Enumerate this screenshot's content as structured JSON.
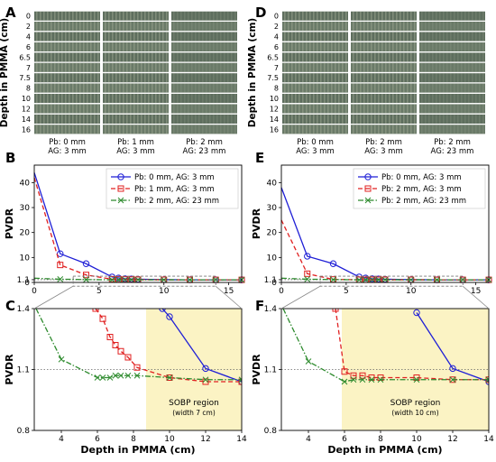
{
  "panel_letters": [
    "A",
    "B",
    "C",
    "D",
    "E",
    "F"
  ],
  "film_depth_labels": [
    "0",
    "2",
    "4",
    "6",
    "6.5",
    "7",
    "7.5",
    "8",
    "10",
    "12",
    "14",
    "16"
  ],
  "film_ylabel": "Depth in PMMA (cm)",
  "film_left": [
    {
      "line1": "Pb: 0 mm",
      "line2": "AG: 3 mm"
    },
    {
      "line1": "Pb: 1 mm",
      "line2": "AG: 3 mm"
    },
    {
      "line1": "Pb: 2 mm",
      "line2": "AG: 23 mm"
    }
  ],
  "film_right": [
    {
      "line1": "Pb: 0 mm",
      "line2": "AG: 3 mm"
    },
    {
      "line1": "Pb: 2 mm",
      "line2": "AG: 3 mm"
    },
    {
      "line1": "Pb: 2 mm",
      "line2": "AG: 23 mm"
    }
  ],
  "colors": {
    "blue": "#1f1fd6",
    "red": "#e02020",
    "green": "#2e8b2e",
    "sobp": "#fbf3c4",
    "film_dark": "#5e6e5e",
    "film_light": "#9aa590"
  },
  "chart_data": [
    {
      "panel": "B",
      "type": "line",
      "ylabel": "PVDR",
      "xlim": [
        0,
        16
      ],
      "ylim": [
        0,
        47
      ],
      "yticks": [
        "0",
        "1.1",
        "10",
        "20",
        "30",
        "40"
      ],
      "xticks": [
        "0",
        "5",
        "10",
        "15"
      ],
      "legend_position": "top-right",
      "series": [
        {
          "name": "Pb: 0 mm, AG: 3 mm",
          "color": "blue",
          "marker": "circle",
          "dash": "solid",
          "x": [
            0,
            2,
            4,
            6,
            6.5,
            7,
            7.5,
            8,
            10,
            12,
            14,
            16
          ],
          "y": [
            44,
            11.5,
            7.5,
            2.2,
            1.8,
            1.5,
            1.4,
            1.3,
            1.1,
            1.05,
            1.04,
            1.04
          ]
        },
        {
          "name": "Pb: 1 mm, AG: 3 mm",
          "color": "red",
          "marker": "square",
          "dash": "dashed",
          "x": [
            0,
            2,
            4,
            6,
            6.5,
            7,
            7.5,
            8,
            10,
            12,
            14,
            16
          ],
          "y": [
            42,
            7,
            3,
            1.3,
            1.22,
            1.18,
            1.15,
            1.1,
            1.06,
            1.04,
            1.04,
            1.04
          ]
        },
        {
          "name": "Pb: 2 mm, AG: 23 mm",
          "color": "green",
          "marker": "x",
          "dash": "dashdot",
          "x": [
            0,
            2,
            4,
            6,
            6.5,
            7,
            7.5,
            8,
            10,
            12,
            14,
            16
          ],
          "y": [
            1.7,
            1.3,
            1.14,
            1.05,
            1.05,
            1.06,
            1.06,
            1.06,
            1.06,
            1.05,
            1.05,
            1.05
          ]
        }
      ]
    },
    {
      "panel": "C",
      "type": "line",
      "ylabel": "PVDR",
      "xlabel": "Depth in PMMA (cm)",
      "xlim": [
        2.5,
        14
      ],
      "ylim": [
        0.8,
        1.4
      ],
      "yticks": [
        "0.8",
        "1.1",
        "1.4"
      ],
      "xticks": [
        "4",
        "6",
        "8",
        "10",
        "12",
        "14"
      ],
      "sobp": {
        "from": 8.7,
        "to": 14,
        "label": "SOBP region",
        "sublabel": "(width 7 cm)"
      },
      "series": [
        {
          "color": "blue",
          "marker": "circle",
          "dash": "solid",
          "x": [
            9.6,
            10,
            12,
            14
          ],
          "y": [
            1.4,
            1.36,
            1.105,
            1.04
          ]
        },
        {
          "color": "red",
          "marker": "square",
          "dash": "dashed",
          "x": [
            5.9,
            6.3,
            6.7,
            7,
            7.3,
            7.7,
            8.2,
            10,
            12,
            14
          ],
          "y": [
            1.4,
            1.35,
            1.26,
            1.22,
            1.19,
            1.16,
            1.11,
            1.06,
            1.04,
            1.04
          ]
        },
        {
          "color": "green",
          "marker": "x",
          "dash": "dashdot",
          "x": [
            2.6,
            4,
            6,
            6.3,
            6.7,
            7,
            7.3,
            7.7,
            8.2,
            10,
            12,
            14
          ],
          "y": [
            1.4,
            1.15,
            1.06,
            1.06,
            1.06,
            1.07,
            1.07,
            1.07,
            1.07,
            1.06,
            1.05,
            1.05
          ]
        }
      ]
    },
    {
      "panel": "E",
      "type": "line",
      "ylabel": "PVDR",
      "xlim": [
        0,
        16
      ],
      "ylim": [
        0,
        47
      ],
      "yticks": [
        "0",
        "1.1",
        "10",
        "20",
        "30",
        "40"
      ],
      "xticks": [
        "0",
        "5",
        "10",
        "15"
      ],
      "legend_position": "top-right",
      "series": [
        {
          "name": "Pb: 0 mm, AG: 3 mm",
          "color": "blue",
          "marker": "circle",
          "dash": "solid",
          "x": [
            0,
            2,
            4,
            6,
            6.5,
            7,
            7.5,
            8,
            10,
            12,
            14,
            16
          ],
          "y": [
            38,
            10.5,
            7.5,
            2.2,
            1.8,
            1.5,
            1.4,
            1.3,
            1.1,
            1.05,
            1.04,
            1.04
          ]
        },
        {
          "name": "Pb: 2 mm, AG: 3 mm",
          "color": "red",
          "marker": "square",
          "dash": "dashed",
          "x": [
            0,
            2,
            4,
            6,
            6.5,
            7,
            7.5,
            8,
            10,
            12,
            14,
            16
          ],
          "y": [
            25,
            3.5,
            1.2,
            1.08,
            1.07,
            1.07,
            1.07,
            1.07,
            1.06,
            1.05,
            1.05,
            1.05
          ]
        },
        {
          "name": "Pb: 2 mm, AG: 23 mm",
          "color": "green",
          "marker": "x",
          "dash": "dashdot",
          "x": [
            0,
            2,
            4,
            6,
            6.5,
            7,
            7.5,
            8,
            10,
            12,
            14,
            16
          ],
          "y": [
            1.7,
            1.3,
            1.14,
            1.05,
            1.05,
            1.06,
            1.06,
            1.06,
            1.06,
            1.05,
            1.05,
            1.05
          ]
        }
      ]
    },
    {
      "panel": "F",
      "type": "line",
      "ylabel": "PVDR",
      "xlabel": "Depth in PMMA (cm)",
      "xlim": [
        2.5,
        14
      ],
      "ylim": [
        0.8,
        1.4
      ],
      "yticks": [
        "0.8",
        "1.1",
        "1.4"
      ],
      "xticks": [
        "4",
        "6",
        "8",
        "10",
        "12",
        "14"
      ],
      "sobp": {
        "from": 5.85,
        "to": 14,
        "label": "SOBP region",
        "sublabel": "(width 10 cm)"
      },
      "series": [
        {
          "color": "blue",
          "marker": "circle",
          "dash": "solid",
          "x": [
            10,
            12,
            14
          ],
          "y": [
            1.38,
            1.105,
            1.04
          ]
        },
        {
          "color": "red",
          "marker": "square",
          "dash": "dashed",
          "x": [
            5.5,
            6,
            6.5,
            7,
            7.5,
            8,
            10,
            12,
            14
          ],
          "y": [
            1.4,
            1.09,
            1.07,
            1.07,
            1.06,
            1.06,
            1.06,
            1.05,
            1.05
          ]
        },
        {
          "color": "green",
          "marker": "x",
          "dash": "dashdot",
          "x": [
            2.6,
            4,
            6,
            6.5,
            7,
            7.5,
            8,
            10,
            12,
            14
          ],
          "y": [
            1.4,
            1.14,
            1.04,
            1.05,
            1.05,
            1.05,
            1.05,
            1.05,
            1.05,
            1.05
          ]
        }
      ]
    }
  ]
}
